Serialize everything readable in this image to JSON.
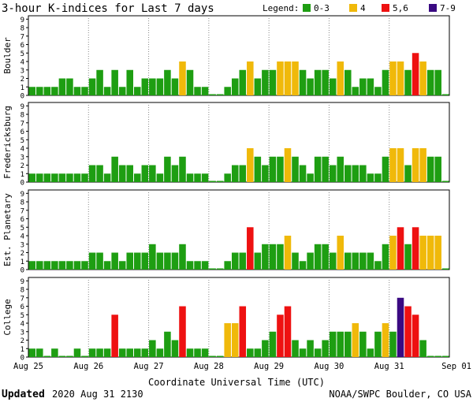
{
  "header": {
    "title": "3-hour K-indices for Last 7 days",
    "legend_label": "Legend:",
    "legend": [
      {
        "label": "0-3",
        "color": "#1e9e12"
      },
      {
        "label": "4",
        "color": "#f0b90a"
      },
      {
        "label": "5,6",
        "color": "#ee1111"
      },
      {
        "label": "7-9",
        "color": "#3a0a82"
      }
    ]
  },
  "footer": {
    "updated_label": "Updated",
    "updated_value": "2020 Aug 31 2130",
    "credit": "NOAA/SWPC Boulder, CO USA"
  },
  "chart_data": {
    "type": "bar",
    "xlabel": "Coordinate Universal Time (UTC)",
    "x_ticks": [
      "Aug 25",
      "Aug 26",
      "Aug 27",
      "Aug 28",
      "Aug 29",
      "Aug 30",
      "Aug 31",
      "Sep 01"
    ],
    "ylim": [
      0,
      9
    ],
    "y_ticks": [
      0,
      1,
      2,
      3,
      4,
      5,
      6,
      7,
      8,
      9
    ],
    "grid": true,
    "colors": {
      "quiet": "#1e9e12",
      "active": "#f0b90a",
      "storm": "#ee1111",
      "severe": "#3a0a82"
    },
    "intervals_per_day": 8,
    "panels": [
      {
        "name": "Boulder",
        "values": [
          1,
          1,
          1,
          1,
          2,
          2,
          1,
          1,
          2,
          3,
          1,
          3,
          1,
          3,
          1,
          2,
          2,
          2,
          3,
          2,
          4,
          3,
          1,
          1,
          0,
          0,
          1,
          2,
          3,
          4,
          2,
          3,
          3,
          4,
          4,
          4,
          3,
          2,
          3,
          3,
          2,
          4,
          3,
          1,
          2,
          2,
          1,
          3,
          4,
          4,
          3,
          5,
          4,
          3,
          3,
          0
        ]
      },
      {
        "name": "Fredericksburg",
        "values": [
          1,
          1,
          1,
          1,
          1,
          1,
          1,
          1,
          2,
          2,
          1,
          3,
          2,
          2,
          1,
          2,
          2,
          1,
          3,
          2,
          3,
          1,
          1,
          1,
          0,
          0,
          1,
          2,
          2,
          4,
          3,
          2,
          3,
          3,
          4,
          3,
          2,
          1,
          3,
          3,
          2,
          3,
          2,
          2,
          2,
          1,
          1,
          3,
          4,
          4,
          2,
          4,
          4,
          3,
          3,
          0
        ]
      },
      {
        "name": "Est. Planetary",
        "values": [
          1,
          1,
          1,
          1,
          1,
          1,
          1,
          1,
          2,
          2,
          1,
          2,
          1,
          2,
          2,
          2,
          3,
          2,
          2,
          2,
          3,
          1,
          1,
          1,
          0,
          0,
          1,
          2,
          2,
          5,
          2,
          3,
          3,
          3,
          4,
          2,
          1,
          2,
          3,
          3,
          2,
          4,
          2,
          2,
          2,
          2,
          1,
          3,
          4,
          5,
          3,
          5,
          4,
          4,
          4,
          0
        ]
      },
      {
        "name": "College",
        "values": [
          1,
          1,
          0,
          1,
          0,
          0,
          1,
          0,
          1,
          1,
          1,
          5,
          1,
          1,
          1,
          1,
          2,
          1,
          3,
          2,
          6,
          1,
          1,
          1,
          0,
          0,
          4,
          4,
          6,
          1,
          1,
          2,
          3,
          5,
          6,
          2,
          1,
          2,
          1,
          2,
          3,
          3,
          3,
          4,
          3,
          1,
          3,
          4,
          3,
          7,
          6,
          5,
          2,
          0,
          0,
          0
        ]
      }
    ]
  }
}
